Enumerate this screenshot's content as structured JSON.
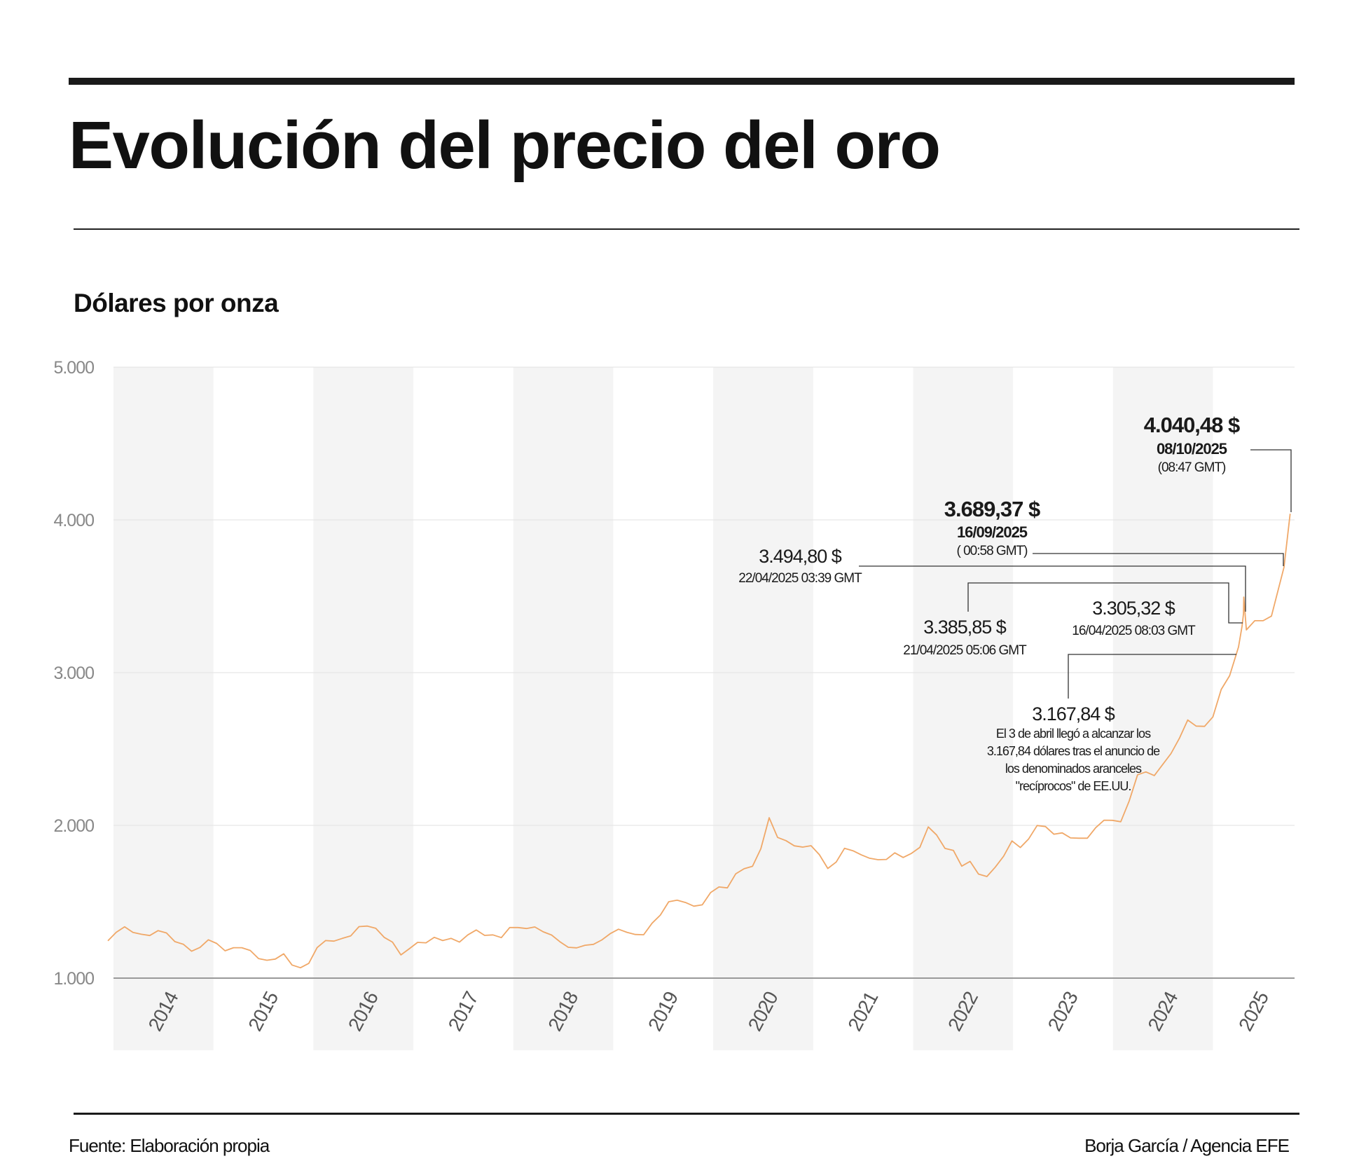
{
  "title": "Evolución del precio del oro",
  "subtitle": "Dólares por onza",
  "footer": {
    "source": "Fuente: Elaboración propia",
    "credit": "Borja García / Agencia EFE"
  },
  "chart_data": {
    "type": "line",
    "title": "Evolución del precio del oro",
    "ylabel": "Dólares por onza",
    "ylim": [
      1000,
      5000
    ],
    "yticks": [
      1000,
      2000,
      3000,
      4000,
      5000
    ],
    "ytick_labels": [
      "1.000",
      "2.000",
      "3.000",
      "4.000",
      "5.000"
    ],
    "xtick_labels": [
      "2014",
      "2015",
      "2016",
      "2017",
      "2018",
      "2019",
      "2020",
      "2021",
      "2022",
      "2023",
      "2024",
      "2025"
    ],
    "grid": true,
    "line_color": "#F0A868",
    "band_color": "#F4F4F4",
    "series": [
      {
        "x": [
          "2014-01",
          "2014-02",
          "2014-03",
          "2014-04",
          "2014-05",
          "2014-06",
          "2014-07",
          "2014-08",
          "2014-09",
          "2014-10",
          "2014-11",
          "2014-12",
          "2015-01",
          "2015-02",
          "2015-03",
          "2015-04",
          "2015-05",
          "2015-06",
          "2015-07",
          "2015-08",
          "2015-09",
          "2015-10",
          "2015-11",
          "2015-12",
          "2016-01",
          "2016-02",
          "2016-03",
          "2016-04",
          "2016-05",
          "2016-06",
          "2016-07",
          "2016-08",
          "2016-09",
          "2016-10",
          "2016-11",
          "2016-12",
          "2017-01",
          "2017-02",
          "2017-03",
          "2017-04",
          "2017-05",
          "2017-06",
          "2017-07",
          "2017-08",
          "2017-09",
          "2017-10",
          "2017-11",
          "2017-12",
          "2018-01",
          "2018-02",
          "2018-03",
          "2018-04",
          "2018-05",
          "2018-06",
          "2018-07",
          "2018-08",
          "2018-09",
          "2018-10",
          "2018-11",
          "2018-12",
          "2019-01",
          "2019-02",
          "2019-03",
          "2019-04",
          "2019-05",
          "2019-06",
          "2019-07",
          "2019-08",
          "2019-09",
          "2019-10",
          "2019-11",
          "2019-12",
          "2020-01",
          "2020-02",
          "2020-03",
          "2020-04",
          "2020-05",
          "2020-06",
          "2020-07",
          "2020-08",
          "2020-09",
          "2020-10",
          "2020-11",
          "2020-12",
          "2021-01",
          "2021-02",
          "2021-03",
          "2021-04",
          "2021-05",
          "2021-06",
          "2021-07",
          "2021-08",
          "2021-09",
          "2021-10",
          "2021-11",
          "2021-12",
          "2022-01",
          "2022-02",
          "2022-03",
          "2022-04",
          "2022-05",
          "2022-06",
          "2022-07",
          "2022-08",
          "2022-09",
          "2022-10",
          "2022-11",
          "2022-12",
          "2023-01",
          "2023-02",
          "2023-03",
          "2023-04",
          "2023-05",
          "2023-06",
          "2023-07",
          "2023-08",
          "2023-09",
          "2023-10",
          "2023-11",
          "2023-12",
          "2024-01",
          "2024-02",
          "2024-03",
          "2024-04",
          "2024-05",
          "2024-06",
          "2024-07",
          "2024-08",
          "2024-09",
          "2024-10",
          "2024-11",
          "2024-12",
          "2025-01",
          "2025-02",
          "2025-03",
          "2025-04-03",
          "2025-04-16",
          "2025-04-21",
          "2025-04-22",
          "2025-05",
          "2025-06",
          "2025-07",
          "2025-08",
          "2025-09-16",
          "2025-10-08"
        ],
        "y": [
          1244,
          1300,
          1336,
          1299,
          1287,
          1279,
          1311,
          1296,
          1239,
          1222,
          1176,
          1201,
          1251,
          1227,
          1179,
          1199,
          1199,
          1181,
          1128,
          1117,
          1125,
          1159,
          1086,
          1068,
          1097,
          1200,
          1246,
          1242,
          1260,
          1276,
          1337,
          1341,
          1326,
          1267,
          1236,
          1152,
          1192,
          1234,
          1231,
          1267,
          1246,
          1260,
          1236,
          1283,
          1315,
          1280,
          1283,
          1265,
          1331,
          1331,
          1325,
          1335,
          1303,
          1282,
          1238,
          1202,
          1198,
          1215,
          1221,
          1250,
          1291,
          1320,
          1300,
          1286,
          1284,
          1359,
          1413,
          1500,
          1510,
          1495,
          1471,
          1480,
          1560,
          1597,
          1591,
          1683,
          1716,
          1732,
          1847,
          2050,
          1921,
          1900,
          1866,
          1858,
          1867,
          1808,
          1718,
          1760,
          1850,
          1834,
          1807,
          1785,
          1775,
          1777,
          1820,
          1790,
          1817,
          1856,
          1990,
          1937,
          1849,
          1836,
          1733,
          1764,
          1681,
          1665,
          1726,
          1798,
          1898,
          1855,
          1912,
          1999,
          1992,
          1942,
          1951,
          1918,
          1916,
          1916,
          1985,
          2034,
          2033,
          2024,
          2159,
          2331,
          2350,
          2326,
          2398,
          2470,
          2570,
          2690,
          2650,
          2648,
          2710,
          2890,
          2980,
          3167.84,
          3305.32,
          3385.85,
          3494.8,
          3280,
          3340,
          3340,
          3370,
          3689.37,
          4040.48
        ]
      }
    ],
    "annotations": [
      {
        "value": "4.040,48 $",
        "date": "08/10/2025",
        "time": "(08:47 GMT)"
      },
      {
        "value": "3.689,37 $",
        "date": "16/09/2025",
        "time": "( 00:58 GMT)"
      },
      {
        "value": "3.494,80 $",
        "date": "22/04/2025 03:39 GMT"
      },
      {
        "value": "3.385,85 $",
        "date": "21/04/2025 05:06 GMT"
      },
      {
        "value": "3.305,32 $",
        "date": "16/04/2025 08:03 GMT"
      },
      {
        "value": "3.167,84 $",
        "note": [
          "El 3 de abril llegó a alcanzar los",
          "3.167,84 dólares tras el anuncio de",
          "los denominados aranceles",
          "\"recíprocos\" de EE.UU."
        ]
      }
    ]
  }
}
